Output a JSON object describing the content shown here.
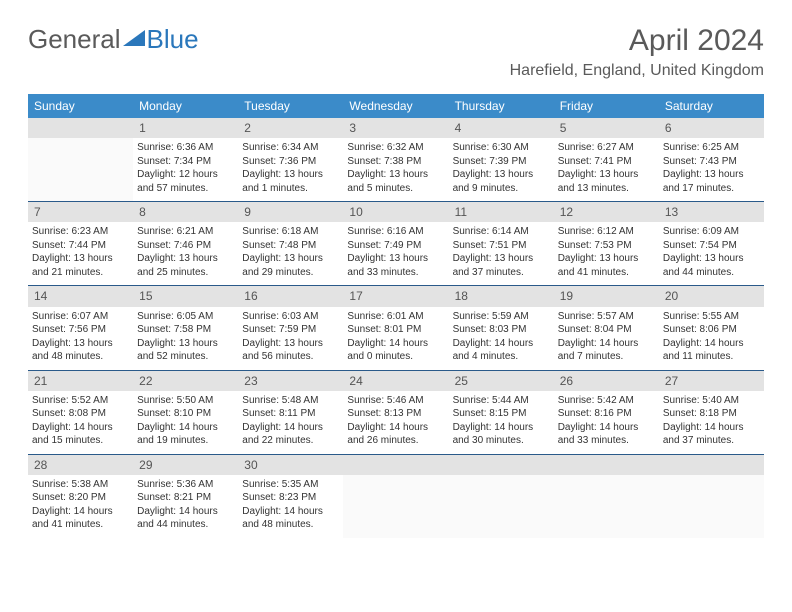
{
  "brand": {
    "part1": "General",
    "part2": "Blue"
  },
  "title": "April 2024",
  "location": "Harefield, England, United Kingdom",
  "header_bg": "#3b8bc9",
  "daynum_bg": "#e3e3e3",
  "border_color": "#2a5a8a",
  "days_of_week": [
    "Sunday",
    "Monday",
    "Tuesday",
    "Wednesday",
    "Thursday",
    "Friday",
    "Saturday"
  ],
  "weeks": [
    {
      "nums": [
        "",
        "1",
        "2",
        "3",
        "4",
        "5",
        "6"
      ],
      "cells": [
        null,
        {
          "sunrise": "6:36 AM",
          "sunset": "7:34 PM",
          "daylight": "12 hours and 57 minutes."
        },
        {
          "sunrise": "6:34 AM",
          "sunset": "7:36 PM",
          "daylight": "13 hours and 1 minutes."
        },
        {
          "sunrise": "6:32 AM",
          "sunset": "7:38 PM",
          "daylight": "13 hours and 5 minutes."
        },
        {
          "sunrise": "6:30 AM",
          "sunset": "7:39 PM",
          "daylight": "13 hours and 9 minutes."
        },
        {
          "sunrise": "6:27 AM",
          "sunset": "7:41 PM",
          "daylight": "13 hours and 13 minutes."
        },
        {
          "sunrise": "6:25 AM",
          "sunset": "7:43 PM",
          "daylight": "13 hours and 17 minutes."
        }
      ]
    },
    {
      "nums": [
        "7",
        "8",
        "9",
        "10",
        "11",
        "12",
        "13"
      ],
      "cells": [
        {
          "sunrise": "6:23 AM",
          "sunset": "7:44 PM",
          "daylight": "13 hours and 21 minutes."
        },
        {
          "sunrise": "6:21 AM",
          "sunset": "7:46 PM",
          "daylight": "13 hours and 25 minutes."
        },
        {
          "sunrise": "6:18 AM",
          "sunset": "7:48 PM",
          "daylight": "13 hours and 29 minutes."
        },
        {
          "sunrise": "6:16 AM",
          "sunset": "7:49 PM",
          "daylight": "13 hours and 33 minutes."
        },
        {
          "sunrise": "6:14 AM",
          "sunset": "7:51 PM",
          "daylight": "13 hours and 37 minutes."
        },
        {
          "sunrise": "6:12 AM",
          "sunset": "7:53 PM",
          "daylight": "13 hours and 41 minutes."
        },
        {
          "sunrise": "6:09 AM",
          "sunset": "7:54 PM",
          "daylight": "13 hours and 44 minutes."
        }
      ]
    },
    {
      "nums": [
        "14",
        "15",
        "16",
        "17",
        "18",
        "19",
        "20"
      ],
      "cells": [
        {
          "sunrise": "6:07 AM",
          "sunset": "7:56 PM",
          "daylight": "13 hours and 48 minutes."
        },
        {
          "sunrise": "6:05 AM",
          "sunset": "7:58 PM",
          "daylight": "13 hours and 52 minutes."
        },
        {
          "sunrise": "6:03 AM",
          "sunset": "7:59 PM",
          "daylight": "13 hours and 56 minutes."
        },
        {
          "sunrise": "6:01 AM",
          "sunset": "8:01 PM",
          "daylight": "14 hours and 0 minutes."
        },
        {
          "sunrise": "5:59 AM",
          "sunset": "8:03 PM",
          "daylight": "14 hours and 4 minutes."
        },
        {
          "sunrise": "5:57 AM",
          "sunset": "8:04 PM",
          "daylight": "14 hours and 7 minutes."
        },
        {
          "sunrise": "5:55 AM",
          "sunset": "8:06 PM",
          "daylight": "14 hours and 11 minutes."
        }
      ]
    },
    {
      "nums": [
        "21",
        "22",
        "23",
        "24",
        "25",
        "26",
        "27"
      ],
      "cells": [
        {
          "sunrise": "5:52 AM",
          "sunset": "8:08 PM",
          "daylight": "14 hours and 15 minutes."
        },
        {
          "sunrise": "5:50 AM",
          "sunset": "8:10 PM",
          "daylight": "14 hours and 19 minutes."
        },
        {
          "sunrise": "5:48 AM",
          "sunset": "8:11 PM",
          "daylight": "14 hours and 22 minutes."
        },
        {
          "sunrise": "5:46 AM",
          "sunset": "8:13 PM",
          "daylight": "14 hours and 26 minutes."
        },
        {
          "sunrise": "5:44 AM",
          "sunset": "8:15 PM",
          "daylight": "14 hours and 30 minutes."
        },
        {
          "sunrise": "5:42 AM",
          "sunset": "8:16 PM",
          "daylight": "14 hours and 33 minutes."
        },
        {
          "sunrise": "5:40 AM",
          "sunset": "8:18 PM",
          "daylight": "14 hours and 37 minutes."
        }
      ]
    },
    {
      "nums": [
        "28",
        "29",
        "30",
        "",
        "",
        "",
        ""
      ],
      "cells": [
        {
          "sunrise": "5:38 AM",
          "sunset": "8:20 PM",
          "daylight": "14 hours and 41 minutes."
        },
        {
          "sunrise": "5:36 AM",
          "sunset": "8:21 PM",
          "daylight": "14 hours and 44 minutes."
        },
        {
          "sunrise": "5:35 AM",
          "sunset": "8:23 PM",
          "daylight": "14 hours and 48 minutes."
        },
        null,
        null,
        null,
        null
      ]
    }
  ],
  "labels": {
    "sunrise": "Sunrise:",
    "sunset": "Sunset:",
    "daylight": "Daylight:"
  }
}
